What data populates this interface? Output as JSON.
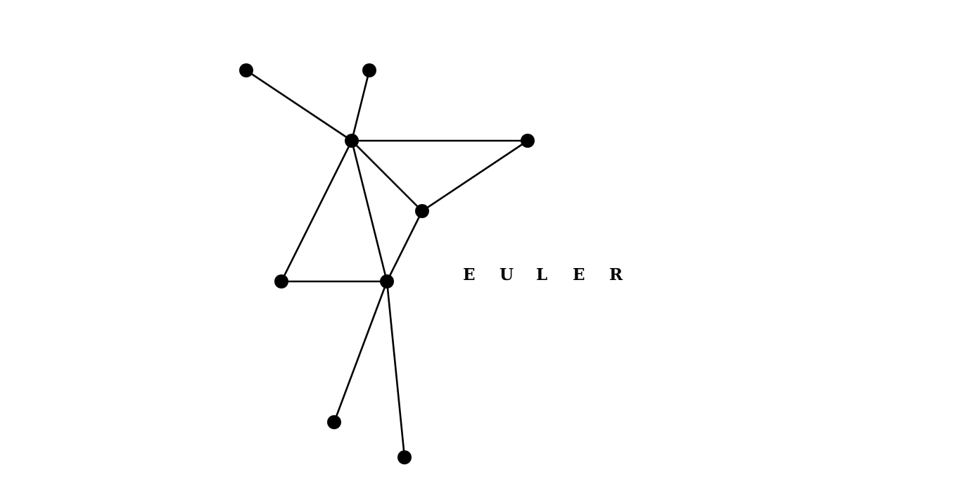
{
  "diagram": {
    "label_letters": [
      "E",
      "U",
      "L",
      "E",
      "R"
    ],
    "colors": {
      "background": "#ffffff",
      "ink": "#000000"
    },
    "nodes": [
      "n1",
      "n2",
      "n3",
      "n4",
      "n5",
      "n6",
      "n7",
      "n8",
      "n9"
    ],
    "edges": [
      [
        "n1",
        "n3"
      ],
      [
        "n2",
        "n3"
      ],
      [
        "n3",
        "n4"
      ],
      [
        "n3",
        "n5"
      ],
      [
        "n3",
        "n6"
      ],
      [
        "n3",
        "n7"
      ],
      [
        "n4",
        "n5"
      ],
      [
        "n5",
        "n7"
      ],
      [
        "n6",
        "n7"
      ],
      [
        "n7",
        "n8"
      ],
      [
        "n7",
        "n9"
      ]
    ]
  }
}
